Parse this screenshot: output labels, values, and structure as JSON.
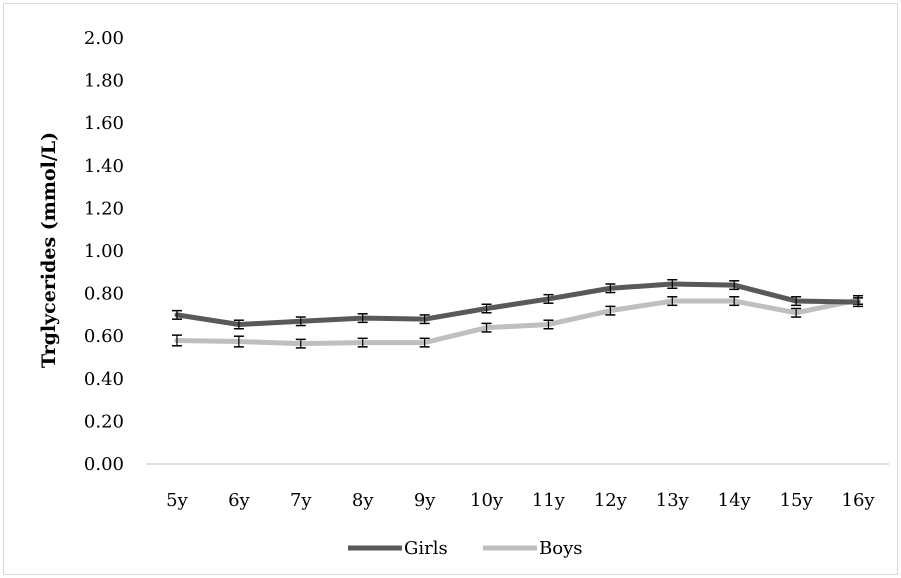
{
  "chart_data": {
    "type": "line",
    "title": "",
    "xlabel": "",
    "ylabel": "Trglycerides (mmol/L)",
    "ylim": [
      0,
      2.0
    ],
    "y_ticks": [
      "0.00",
      "0.20",
      "0.40",
      "0.60",
      "0.80",
      "1.00",
      "1.20",
      "1.40",
      "1.60",
      "1.80",
      "2.00"
    ],
    "categories": [
      "5y",
      "6y",
      "7y",
      "8y",
      "9y",
      "10y",
      "11y",
      "12y",
      "13y",
      "14y",
      "15y",
      "16y"
    ],
    "grid": false,
    "legend_position": "bottom",
    "series": [
      {
        "name": "Girls",
        "color": "#595959",
        "values": [
          0.7,
          0.655,
          0.67,
          0.685,
          0.68,
          0.73,
          0.775,
          0.825,
          0.845,
          0.84,
          0.765,
          0.76
        ],
        "error": [
          0.02,
          0.02,
          0.02,
          0.02,
          0.02,
          0.02,
          0.02,
          0.02,
          0.02,
          0.02,
          0.02,
          0.02
        ]
      },
      {
        "name": "Boys",
        "color": "#bfbfbf",
        "values": [
          0.58,
          0.575,
          0.565,
          0.57,
          0.57,
          0.64,
          0.655,
          0.72,
          0.765,
          0.765,
          0.71,
          0.77
        ],
        "error": [
          0.025,
          0.025,
          0.02,
          0.02,
          0.02,
          0.02,
          0.02,
          0.02,
          0.02,
          0.02,
          0.02,
          0.02
        ]
      }
    ]
  }
}
